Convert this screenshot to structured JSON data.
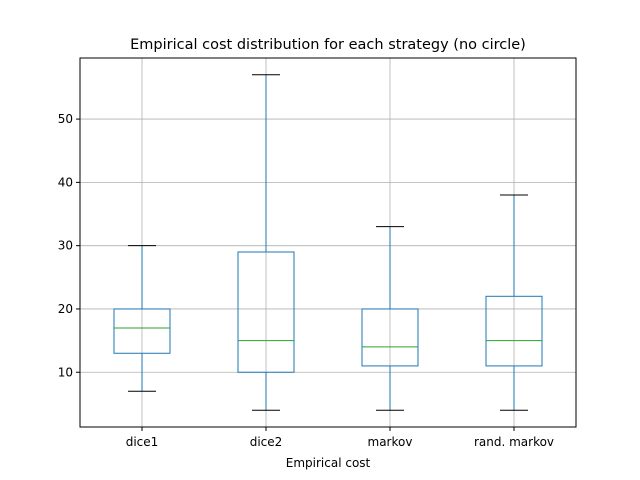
{
  "chart_data": {
    "type": "box",
    "title": "Empirical cost distribution for each strategy (no circle)",
    "xlabel": "Empirical cost",
    "ylabel": "",
    "categories": [
      "dice1",
      "dice2",
      "markov",
      "rand. markov"
    ],
    "boxes": [
      {
        "name": "dice1",
        "whisker_low": 7,
        "q1": 13,
        "median": 17,
        "q3": 20,
        "whisker_high": 30
      },
      {
        "name": "dice2",
        "whisker_low": 4,
        "q1": 10,
        "median": 15,
        "q3": 29,
        "whisker_high": 57
      },
      {
        "name": "markov",
        "whisker_low": 4,
        "q1": 11,
        "median": 14,
        "q3": 20,
        "whisker_high": 33
      },
      {
        "name": "rand. markov",
        "whisker_low": 4,
        "q1": 11,
        "median": 15,
        "q3": 22,
        "whisker_high": 38
      }
    ],
    "ylim": [
      1.35,
      59.65
    ],
    "yticks": [
      10,
      20,
      30,
      40,
      50
    ],
    "grid": true,
    "colors": {
      "box": "#1f77b4",
      "median": "#2ca02c",
      "cap": "#000000",
      "grid": "#b0b0b0"
    }
  }
}
